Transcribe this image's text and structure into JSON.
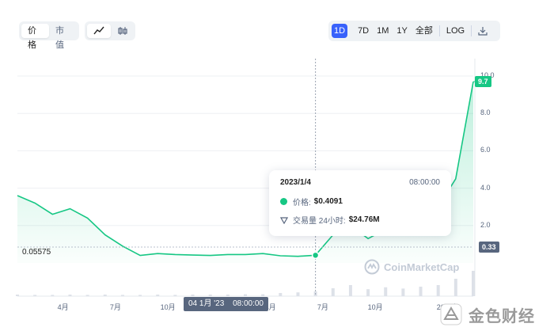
{
  "toggles": {
    "price_label": "价格",
    "marketcap_label": "市值"
  },
  "timeframe": {
    "d1": "1D",
    "d7": "7D",
    "m1": "1M",
    "y1": "1Y",
    "all": "全部",
    "log": "LOG"
  },
  "axis": {
    "y_ticks": [
      "10.0",
      "8.0",
      "6.0",
      "4.0",
      "2.0"
    ],
    "x_ticks": [
      "4月",
      "7月",
      "10月",
      "4月",
      "7月",
      "10月",
      "2024年"
    ],
    "crosshair_date": "04 1月 '23",
    "crosshair_time": "08:00:00"
  },
  "tags": {
    "current_price": "9.7",
    "min_label": "0.05575",
    "right_low": "0.33"
  },
  "tooltip": {
    "date": "2023/1/4",
    "time": "08:00:00",
    "price_label": "价格:",
    "price_value": "$0.4091",
    "volume_label": "交易量 24小时:",
    "volume_value": "$24.76M"
  },
  "watermark": "CoinMarketCap",
  "brand": "金色财经",
  "colors": {
    "line": "#16c784",
    "accent": "#3861fb"
  },
  "chart_data": {
    "type": "line",
    "ylim": [
      0,
      10
    ],
    "ticks_y": [
      2,
      4,
      6,
      8,
      10
    ],
    "x": [
      "2022-12",
      "2023-01",
      "2023-02",
      "2023-03",
      "2023-04",
      "2023-05",
      "2023-06",
      "2023-07",
      "2023-08",
      "2023-09",
      "2023-10",
      "2023-11",
      "2023-12",
      "2024-01",
      "2024-02",
      "2024-03",
      "2024-04",
      "2024-05",
      "2024-06",
      "2024-07",
      "2024-08",
      "2024-09",
      "2024-10",
      "2024-11",
      "2024-12",
      "2025-01",
      "2025-02"
    ],
    "series": [
      {
        "values": [
          3.6,
          3.2,
          2.6,
          2.9,
          2.4,
          1.5,
          0.9,
          0.4,
          0.5,
          0.45,
          0.42,
          0.4,
          0.45,
          0.45,
          0.5,
          0.38,
          0.35,
          0.4091,
          1.5,
          2.0,
          1.3,
          1.8,
          1.6,
          2.5,
          3.0,
          4.5,
          9.7
        ]
      }
    ],
    "volume": [
      0.05,
      0.04,
      0.04,
      0.05,
      0.04,
      0.05,
      0.04,
      0.04,
      0.05,
      0.04,
      0.05,
      0.05,
      0.05,
      0.06,
      0.06,
      0.1,
      0.12,
      0.15,
      0.25,
      0.35,
      0.22,
      0.28,
      0.24,
      0.3,
      0.35,
      0.55,
      0.8
    ]
  }
}
